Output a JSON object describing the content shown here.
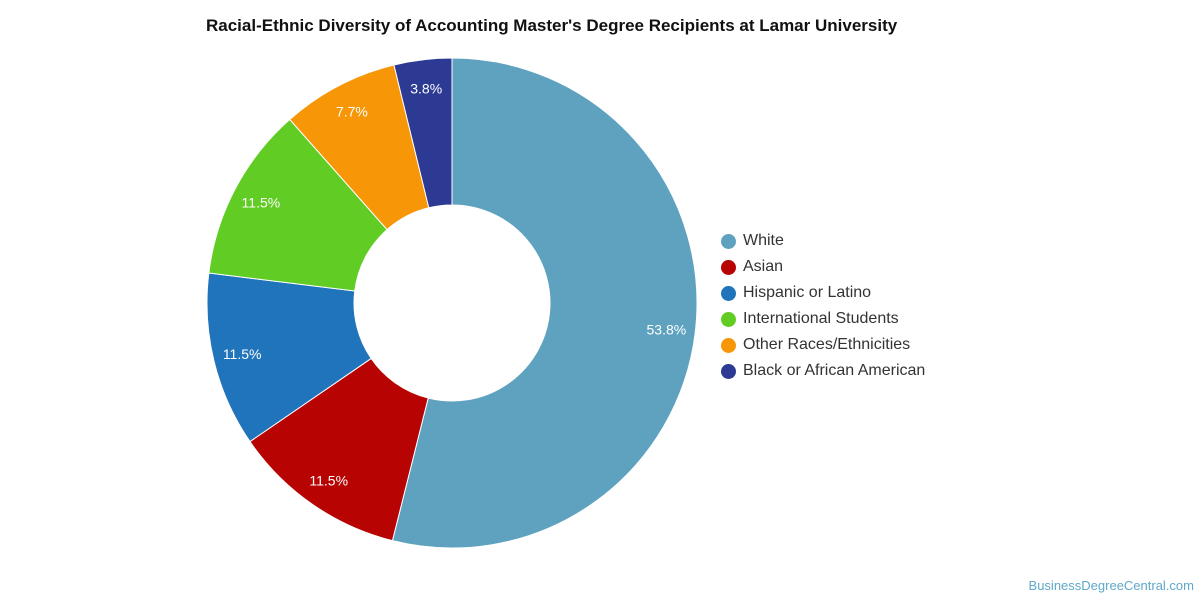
{
  "chart_data": {
    "type": "pie",
    "variant": "donut",
    "title": "Racial-Ethnic Diversity of Accounting Master's Degree Recipients at Lamar University",
    "unit": "%",
    "legend_position": "right",
    "slices": [
      {
        "name": "White",
        "value": 53.8,
        "label": "53.8%",
        "color": "#5ea2c0"
      },
      {
        "name": "Asian",
        "value": 11.5,
        "label": "11.5%",
        "color": "#b80303"
      },
      {
        "name": "Hispanic or Latino",
        "value": 11.5,
        "label": "11.5%",
        "color": "#1f74bb"
      },
      {
        "name": "International Students",
        "value": 11.5,
        "label": "11.5%",
        "color": "#61cc24"
      },
      {
        "name": "Other Races/Ethnicities",
        "value": 7.7,
        "label": "7.7%",
        "color": "#f79606"
      },
      {
        "name": "Black or African American",
        "value": 3.8,
        "label": "3.8%",
        "color": "#2c3a93"
      }
    ]
  },
  "source_text": "BusinessDegreeCentral.com"
}
